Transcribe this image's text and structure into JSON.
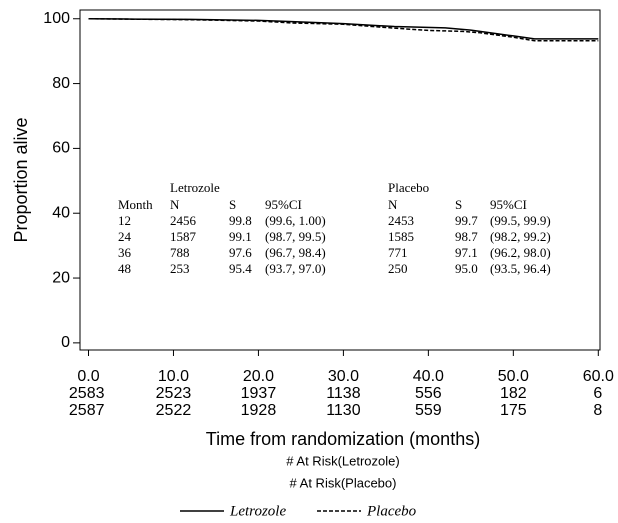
{
  "chart_data": {
    "type": "line",
    "y_label": "Proportion alive",
    "x_label": "Time from randomization (months)",
    "xlim": [
      -1,
      60.2
    ],
    "ylim": [
      -2.2,
      102.7
    ],
    "xticks": [
      {
        "value": 0,
        "label": "0.0"
      },
      {
        "value": 10,
        "label": "10.0"
      },
      {
        "value": 20,
        "label": "20.0"
      },
      {
        "value": 30,
        "label": "30.0"
      },
      {
        "value": 40,
        "label": "40.0"
      },
      {
        "value": 50,
        "label": "50.0"
      },
      {
        "value": 60,
        "label": "60.0"
      }
    ],
    "yticks": [
      0,
      20,
      40,
      60,
      80,
      100
    ],
    "series": [
      {
        "name": "Letrozole",
        "color": "#000000",
        "dash": "solid",
        "x": [
          0,
          5,
          12,
          20,
          24,
          30,
          36,
          42,
          45,
          48,
          50,
          52.5,
          60
        ],
        "values": [
          100,
          99.9,
          99.8,
          99.5,
          99.1,
          98.5,
          97.6,
          97.2,
          96.5,
          95.4,
          94.7,
          93.8,
          93.8
        ]
      },
      {
        "name": "Placebo",
        "color": "#000000",
        "dash": "dashed",
        "x": [
          0,
          12,
          20,
          24,
          30,
          36,
          40,
          44,
          46,
          48,
          50,
          52.5,
          60
        ],
        "values": [
          100,
          99.7,
          99.3,
          98.7,
          98.3,
          97.1,
          96.4,
          96.1,
          95.7,
          95.0,
          94.3,
          93.2,
          93.2
        ]
      }
    ],
    "annotation_table": {
      "groups": [
        "Letrozole",
        "Placebo"
      ],
      "header": [
        "Month",
        "N",
        "S",
        "95%CI",
        "N",
        "S",
        "95%CI"
      ],
      "rows": [
        [
          "12",
          "2456",
          "99.8",
          "(99.6, 1.00)",
          "2453",
          "99.7",
          "(99.5, 99.9)"
        ],
        [
          "24",
          "1587",
          "99.1",
          "(98.7, 99.5)",
          "1585",
          "98.7",
          "(98.2, 99.2)"
        ],
        [
          "36",
          "788",
          "97.6",
          "(96.7, 98.4)",
          "771",
          "97.1",
          "(96.2, 98.0)"
        ],
        [
          "48",
          "253",
          "95.4",
          "(93.7, 97.0)",
          "250",
          "95.0",
          "(93.5, 96.4)"
        ]
      ]
    },
    "at_risk": {
      "labels": [
        "# At Risk(Letrozole)",
        "# At Risk(Placebo)"
      ],
      "rows": [
        [
          2583,
          2523,
          1937,
          1138,
          556,
          182,
          6
        ],
        [
          2587,
          2522,
          1928,
          1130,
          559,
          175,
          8
        ]
      ]
    }
  }
}
